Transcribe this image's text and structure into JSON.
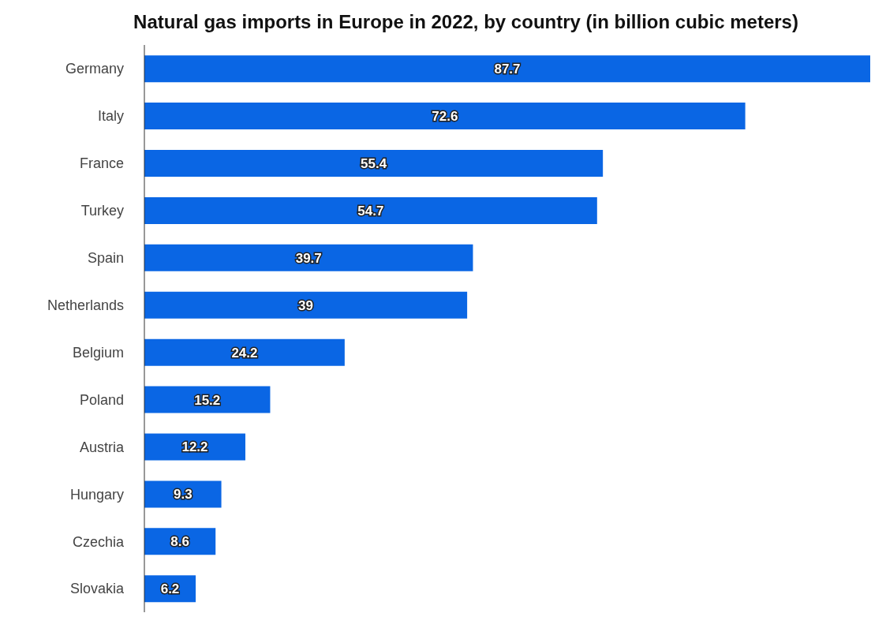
{
  "chart_data": {
    "type": "bar",
    "orientation": "horizontal",
    "title": "Natural gas imports in Europe in 2022, by country (in billion cubic meters)",
    "categories": [
      "Germany",
      "Italy",
      "France",
      "Turkey",
      "Spain",
      "Netherlands",
      "Belgium",
      "Poland",
      "Austria",
      "Hungary",
      "Czechia",
      "Slovakia"
    ],
    "values": [
      87.7,
      72.6,
      55.4,
      54.7,
      39.7,
      39,
      24.2,
      15.2,
      12.2,
      9.3,
      8.6,
      6.2
    ],
    "color": "#0a66e4",
    "tick_labels": "y",
    "data_labels": true
  }
}
